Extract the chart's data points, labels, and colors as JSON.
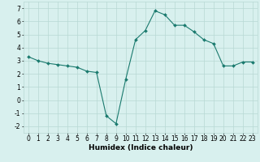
{
  "x": [
    0,
    1,
    2,
    3,
    4,
    5,
    6,
    7,
    8,
    9,
    10,
    11,
    12,
    13,
    14,
    15,
    16,
    17,
    18,
    19,
    20,
    21,
    22,
    23
  ],
  "y": [
    3.3,
    3.0,
    2.8,
    2.7,
    2.6,
    2.5,
    2.2,
    2.1,
    -1.2,
    -1.8,
    1.6,
    4.6,
    5.3,
    6.8,
    6.5,
    5.7,
    5.7,
    5.2,
    4.6,
    4.3,
    2.6,
    2.6,
    2.9,
    2.9
  ],
  "line_color": "#1a7a6e",
  "marker": "D",
  "marker_size": 2.0,
  "bg_color": "#d8f0ee",
  "grid_color": "#b8d8d4",
  "xlabel": "Humidex (Indice chaleur)",
  "xlim": [
    -0.5,
    23.5
  ],
  "ylim": [
    -2.5,
    7.5
  ],
  "xticks": [
    0,
    1,
    2,
    3,
    4,
    5,
    6,
    7,
    8,
    9,
    10,
    11,
    12,
    13,
    14,
    15,
    16,
    17,
    18,
    19,
    20,
    21,
    22,
    23
  ],
  "yticks": [
    -2,
    -1,
    0,
    1,
    2,
    3,
    4,
    5,
    6,
    7
  ],
  "xlabel_fontsize": 6.5,
  "tick_fontsize": 5.5,
  "linewidth": 0.8
}
